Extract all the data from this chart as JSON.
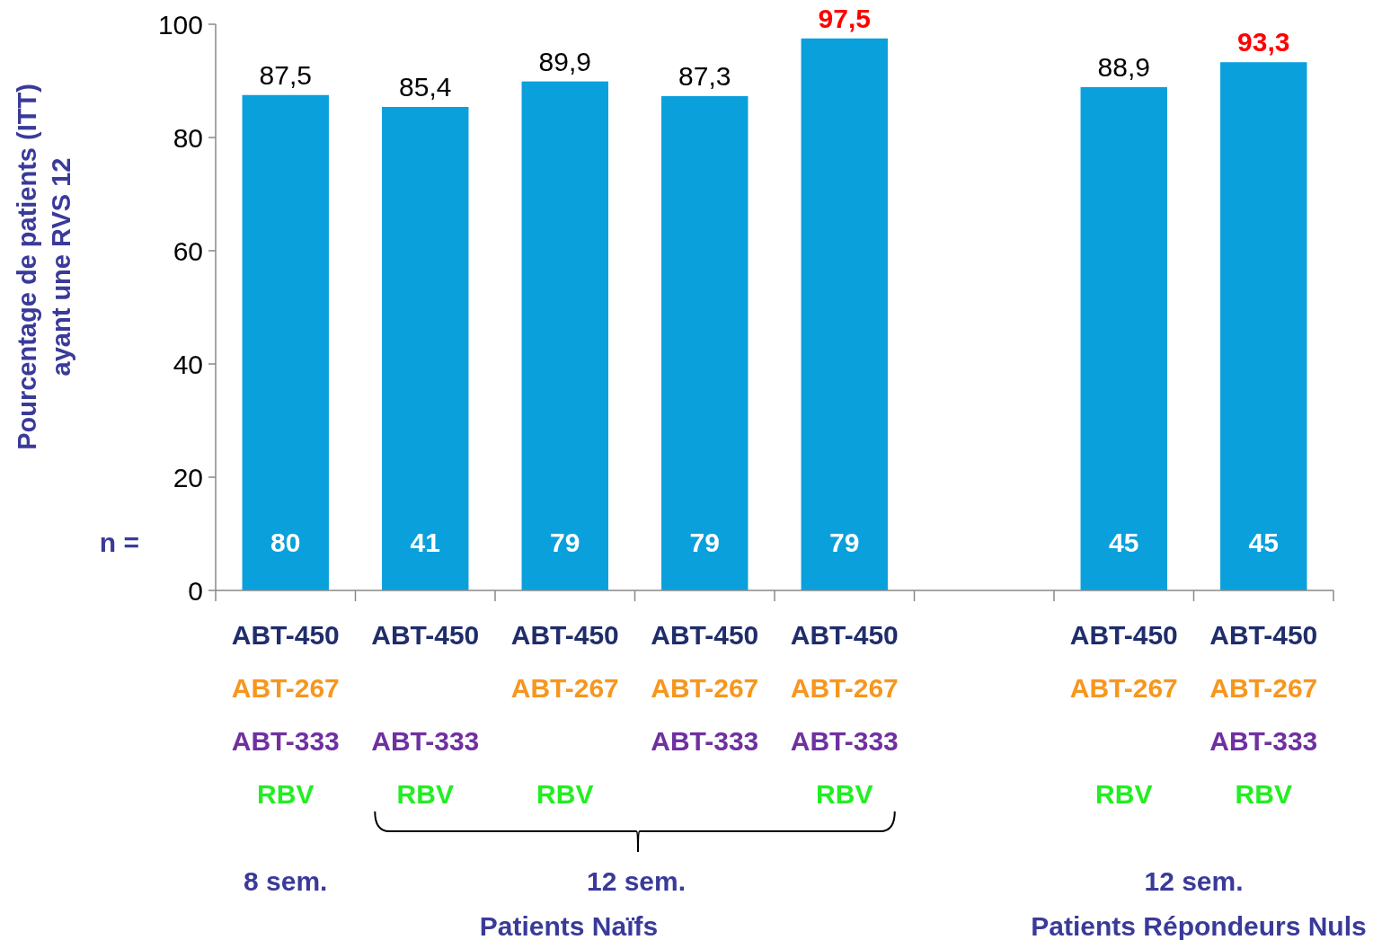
{
  "chart_data": {
    "type": "bar",
    "ylabel": "Pourcentage de patients  (ITT)\nayant une RVS 12",
    "categories": [
      "ABT-450\nABT-267\nABT-333\nRBV",
      "ABT-450\n\nABT-333\nRBV",
      "ABT-450\nABT-267\n\nRBV",
      "ABT-450\nABT-267\nABT-333\n",
      "ABT-450\nABT-267\nABT-333\nRBV",
      null,
      "ABT-450\nABT-267\n\nRBV",
      "ABT-450\nABT-267\nABT-333\nRBV"
    ],
    "values": [
      87.5,
      85.4,
      89.9,
      87.3,
      97.5,
      null,
      88.9,
      93.3
    ],
    "value_labels": [
      "87,5",
      "85,4",
      "89,9",
      "87,3",
      "97,5",
      null,
      "88,9",
      "93,3"
    ],
    "color": "#0aa0dc",
    "ylim": [
      0,
      100
    ],
    "yticks": [
      0,
      20,
      40,
      60,
      80,
      100
    ],
    "grid": false,
    "annotations": [
      "n =",
      "80",
      "41",
      "79",
      "79",
      "79",
      "45",
      "45",
      "8 sem.",
      "12 sem.",
      "Patients Naïfs",
      "12 sem.",
      "Patients Répondeurs Nuls"
    ]
  }
}
